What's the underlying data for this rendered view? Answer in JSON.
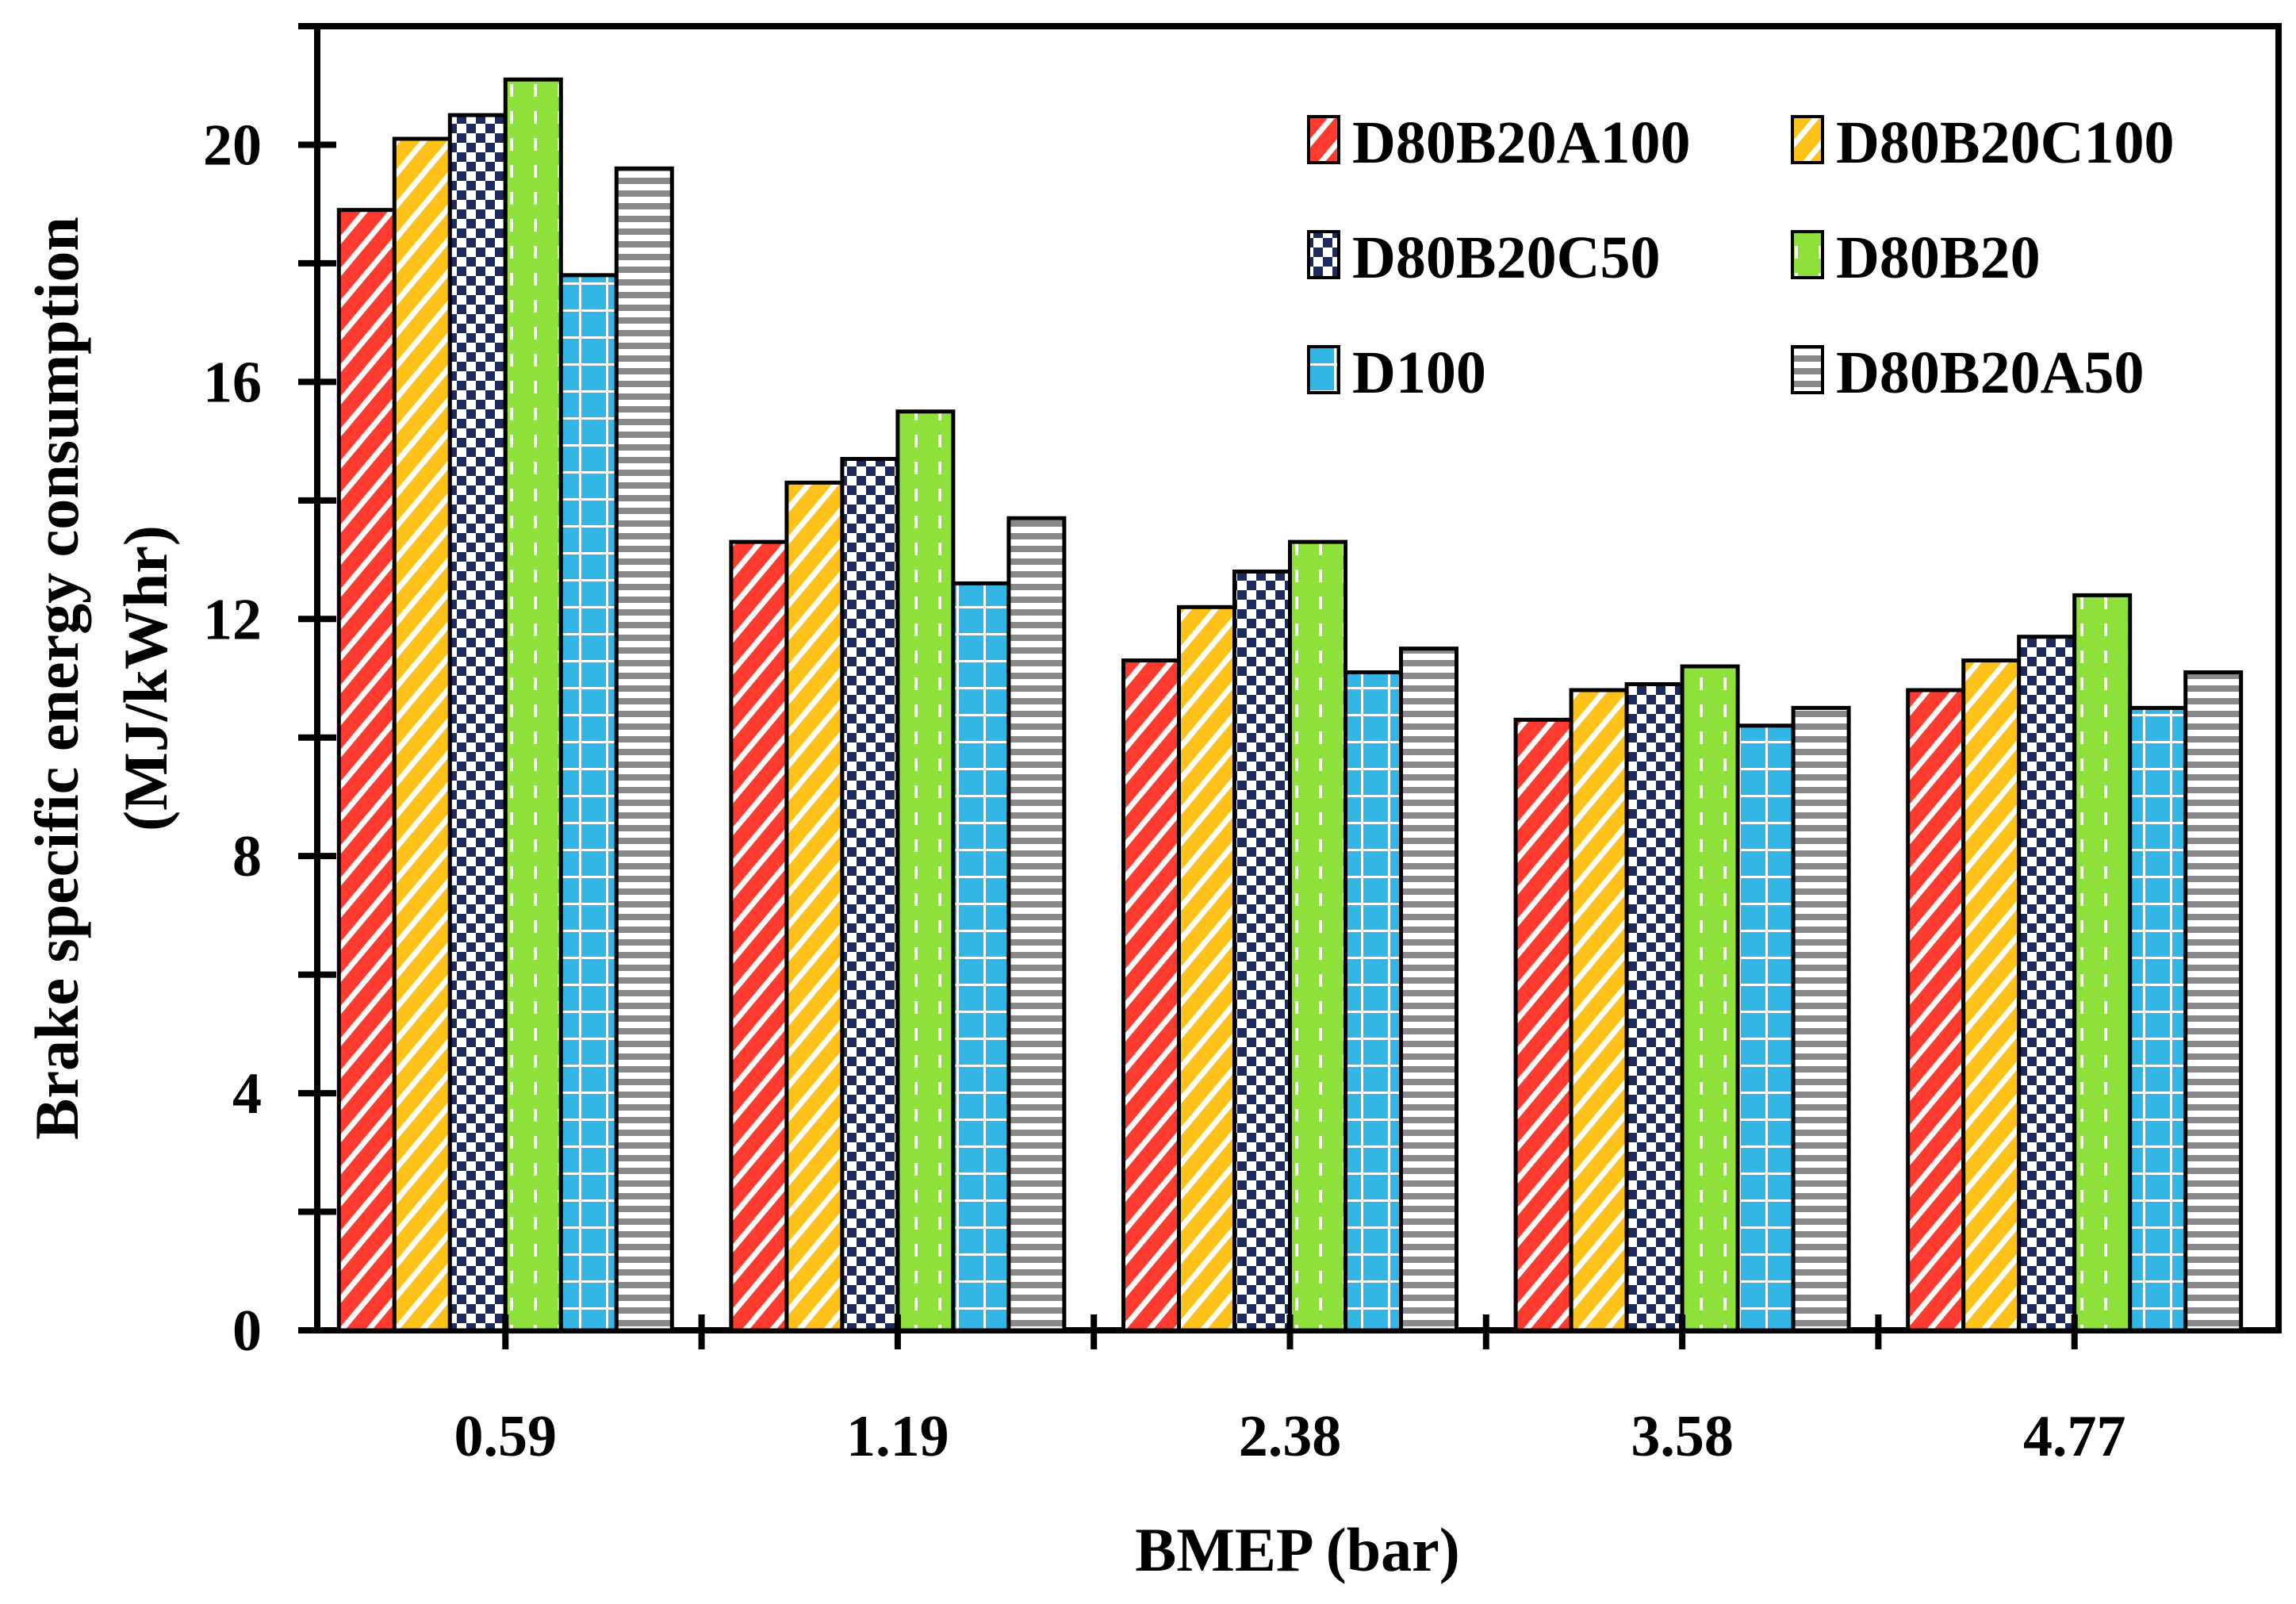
{
  "chart_data": {
    "type": "bar",
    "title": "",
    "xlabel": "BMEP (bar)",
    "ylabel_line1": "Brake specific energy consumption",
    "ylabel_line2": "(MJ/kWhr)",
    "ylim": [
      0,
      22
    ],
    "yticks": [
      0,
      4,
      8,
      12,
      16,
      20
    ],
    "legend_position": "top-right",
    "categories": [
      "0.59",
      "1.19",
      "2.38",
      "3.58",
      "4.77"
    ],
    "series": [
      {
        "name": "D80B20A100",
        "color": "#ff3b2f",
        "pattern": "diagonal",
        "values": [
          18.9,
          13.3,
          11.3,
          10.3,
          10.8
        ]
      },
      {
        "name": "D80B20C100",
        "color": "#ffc21a",
        "pattern": "diagonal",
        "values": [
          20.1,
          14.3,
          12.2,
          10.8,
          11.3
        ]
      },
      {
        "name": "D80B20C50",
        "color": "#1f2a5c",
        "pattern": "checker",
        "values": [
          20.5,
          14.7,
          12.8,
          10.9,
          11.7
        ]
      },
      {
        "name": "D80B20",
        "color": "#8ee03a",
        "pattern": "dashed-vertical",
        "values": [
          21.1,
          15.5,
          13.3,
          11.2,
          12.4
        ]
      },
      {
        "name": "D100",
        "color": "#33b5e5",
        "pattern": "grid",
        "values": [
          17.8,
          12.6,
          11.1,
          10.2,
          10.5
        ]
      },
      {
        "name": "D80B20A50",
        "color": "#9a9a9a",
        "pattern": "horizontal",
        "values": [
          19.6,
          13.7,
          11.5,
          10.5,
          11.1
        ]
      }
    ]
  }
}
